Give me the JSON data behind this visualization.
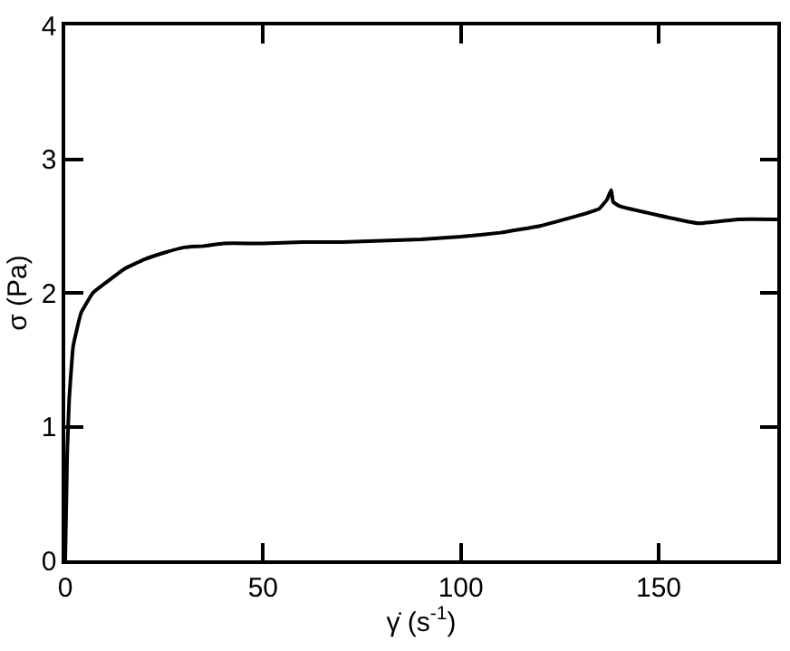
{
  "chart_data": {
    "type": "line",
    "xlabel": "γ̇ (s$^{-1}$)",
    "ylabel": "σ (Pa)",
    "x": [
      0,
      0.5,
      1,
      2,
      4,
      7,
      10,
      15,
      20,
      25,
      30,
      35,
      40,
      50,
      60,
      70,
      80,
      90,
      100,
      110,
      120,
      130,
      135,
      137,
      138,
      138.5,
      140,
      150,
      160,
      170,
      180
    ],
    "series": [
      {
        "color": "#000000",
        "values": [
          0,
          0.8,
          1.2,
          1.6,
          1.85,
          2.0,
          2.07,
          2.18,
          2.25,
          2.3,
          2.34,
          2.35,
          2.37,
          2.37,
          2.38,
          2.38,
          2.39,
          2.4,
          2.42,
          2.45,
          2.5,
          2.58,
          2.63,
          2.7,
          2.77,
          2.68,
          2.65,
          2.58,
          2.52,
          2.55,
          2.55
        ]
      }
    ],
    "xlim": [
      0,
      180
    ],
    "xticks": [
      0,
      50,
      100,
      150
    ],
    "ylim": [
      0,
      4
    ],
    "yticks": [
      0,
      1,
      2,
      3,
      4
    ],
    "marker": "none",
    "line_style": "solid"
  }
}
